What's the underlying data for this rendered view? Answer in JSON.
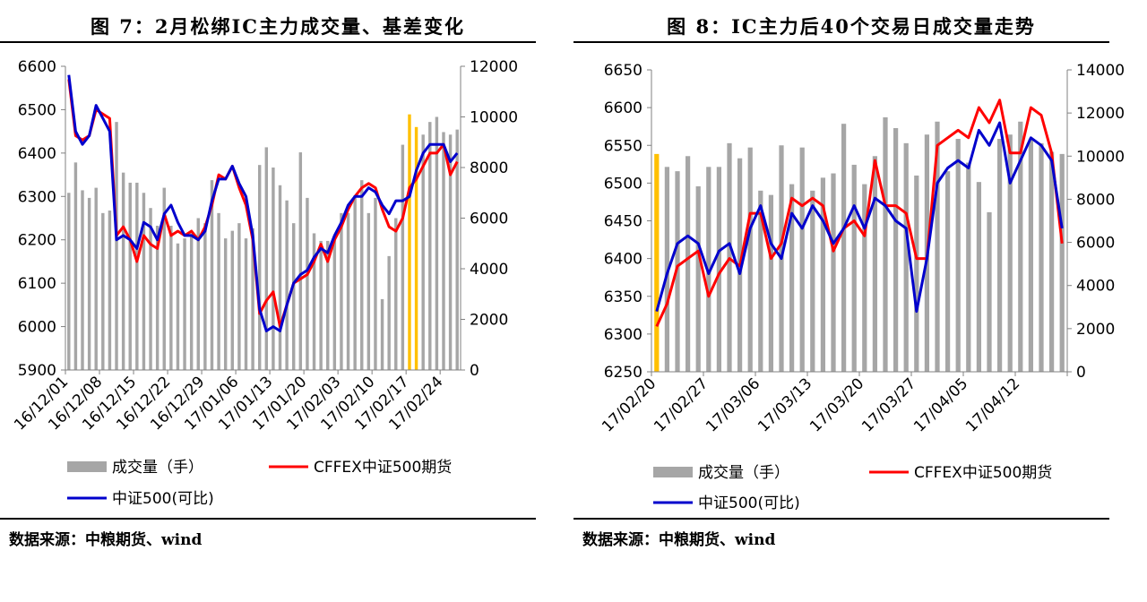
{
  "charts": [
    {
      "title": "图 7：2月松绑IC主力成交量、基差变化",
      "source": "数据来源：中粮期货、wind",
      "legend": {
        "bar": "成交量（手）",
        "line1": "CFFEX中证500期货",
        "line2": "中证500(可比)"
      },
      "colors": {
        "bar": "#a6a6a6",
        "highlight": "#ffc000",
        "line1": "#ff0000",
        "line2": "#0000cc"
      }
    },
    {
      "title": "图 8：IC主力后40个交易日成交量走势",
      "source": "数据来源：中粮期货、wind",
      "legend": {
        "bar": "成交量（手）",
        "line1": "CFFEX中证500期货",
        "line2": "中证500(可比)"
      },
      "colors": {
        "bar": "#a6a6a6",
        "highlight": "#ffc000",
        "line1": "#ff0000",
        "line2": "#0000cc"
      }
    }
  ],
  "chart_data": [
    {
      "type": "bar+line",
      "left_axis": {
        "ylim": [
          5900,
          6600
        ],
        "ticks": [
          5900,
          6000,
          6100,
          6200,
          6300,
          6400,
          6500,
          6600
        ]
      },
      "right_axis": {
        "ylim": [
          0,
          12000
        ],
        "ticks": [
          0,
          2000,
          4000,
          6000,
          8000,
          10000,
          12000
        ]
      },
      "x_tick_labels": [
        "16/12/01",
        "16/12/08",
        "16/12/15",
        "16/12/22",
        "16/12/29",
        "17/01/06",
        "17/01/13",
        "17/01/20",
        "17/02/03",
        "17/02/10",
        "17/02/17",
        "17/02/24"
      ],
      "x_tick_every": 5,
      "bar_count": 58,
      "highlight_bars": [
        50,
        51
      ],
      "series": [
        {
          "name": "成交量（手）",
          "type": "bar",
          "axis": "right",
          "values": [
            7000,
            8200,
            7100,
            6800,
            7200,
            6200,
            6300,
            9800,
            7800,
            7400,
            7400,
            7000,
            6400,
            5700,
            7200,
            5700,
            5000,
            5200,
            5400,
            6000,
            5800,
            7500,
            6200,
            5200,
            5500,
            5800,
            5200,
            5600,
            8100,
            8800,
            8000,
            7300,
            6700,
            5800,
            8600,
            6800,
            5400,
            5100,
            5100,
            5300,
            6200,
            6200,
            6900,
            7500,
            6200,
            6800,
            2800,
            4500,
            6000,
            8900,
            10100,
            9600,
            9300,
            9800,
            10000,
            9400,
            9300,
            9500
          ]
        },
        {
          "name": "CFFEX中证500期货",
          "type": "line",
          "axis": "left",
          "values": [
            6570,
            6440,
            6430,
            6440,
            6500,
            6490,
            6480,
            6210,
            6230,
            6200,
            6150,
            6210,
            6190,
            6180,
            6260,
            6210,
            6220,
            6210,
            6220,
            6200,
            6230,
            6280,
            6350,
            6340,
            6370,
            6320,
            6280,
            6200,
            6030,
            6060,
            6080,
            6000,
            6050,
            6100,
            6110,
            6120,
            6150,
            6190,
            6150,
            6200,
            6230,
            6270,
            6300,
            6320,
            6330,
            6320,
            6270,
            6230,
            6220,
            6250,
            6320,
            6340,
            6370,
            6400,
            6400,
            6420,
            6350,
            6380
          ]
        },
        {
          "name": "中证500(可比)",
          "type": "line",
          "axis": "left",
          "values": [
            6580,
            6450,
            6420,
            6440,
            6510,
            6480,
            6450,
            6200,
            6210,
            6200,
            6180,
            6240,
            6230,
            6200,
            6260,
            6280,
            6240,
            6210,
            6210,
            6200,
            6220,
            6290,
            6340,
            6340,
            6370,
            6330,
            6300,
            6210,
            6040,
            5990,
            6000,
            5990,
            6050,
            6100,
            6120,
            6130,
            6160,
            6180,
            6170,
            6210,
            6240,
            6280,
            6300,
            6300,
            6320,
            6310,
            6280,
            6260,
            6290,
            6290,
            6300,
            6360,
            6400,
            6420,
            6420,
            6420,
            6380,
            6400
          ]
        }
      ]
    },
    {
      "type": "bar+line",
      "left_axis": {
        "ylim": [
          6250,
          6650
        ],
        "ticks": [
          6250,
          6300,
          6350,
          6400,
          6450,
          6500,
          6550,
          6600,
          6650
        ]
      },
      "right_axis": {
        "ylim": [
          0,
          14000
        ],
        "ticks": [
          0,
          2000,
          4000,
          6000,
          8000,
          10000,
          12000,
          14000
        ]
      },
      "x_tick_labels": [
        "17/02/20",
        "17/02/27",
        "17/03/06",
        "17/03/13",
        "17/03/20",
        "17/03/27",
        "17/04/05",
        "17/04/12"
      ],
      "x_tick_every": 5,
      "bar_count": 40,
      "highlight_bars": [
        0
      ],
      "series": [
        {
          "name": "成交量（手）",
          "type": "bar",
          "axis": "right",
          "values": [
            10100,
            9500,
            9300,
            10000,
            8600,
            9500,
            9500,
            10600,
            9900,
            10400,
            8400,
            8200,
            10500,
            8700,
            10400,
            8400,
            9000,
            9200,
            11500,
            9600,
            8700,
            10000,
            11800,
            11300,
            10600,
            9100,
            11000,
            11600,
            9300,
            10800,
            9700,
            8800,
            7400,
            10800,
            11000,
            11600,
            10800,
            10600,
            10200,
            10100
          ]
        },
        {
          "name": "CFFEX中证500期货",
          "type": "line",
          "axis": "left",
          "values": [
            6310,
            6340,
            6390,
            6400,
            6410,
            6350,
            6380,
            6400,
            6390,
            6460,
            6460,
            6400,
            6420,
            6480,
            6470,
            6480,
            6470,
            6410,
            6440,
            6450,
            6430,
            6530,
            6470,
            6470,
            6460,
            6400,
            6400,
            6550,
            6560,
            6570,
            6560,
            6600,
            6580,
            6610,
            6540,
            6540,
            6600,
            6590,
            6540,
            6420
          ]
        },
        {
          "name": "中证500(可比)",
          "type": "line",
          "axis": "left",
          "values": [
            6330,
            6380,
            6420,
            6430,
            6420,
            6380,
            6410,
            6420,
            6380,
            6440,
            6470,
            6420,
            6400,
            6460,
            6440,
            6470,
            6450,
            6420,
            6440,
            6470,
            6440,
            6480,
            6470,
            6450,
            6440,
            6330,
            6400,
            6500,
            6520,
            6530,
            6520,
            6570,
            6550,
            6580,
            6500,
            6530,
            6560,
            6550,
            6530,
            6440
          ]
        }
      ]
    }
  ]
}
